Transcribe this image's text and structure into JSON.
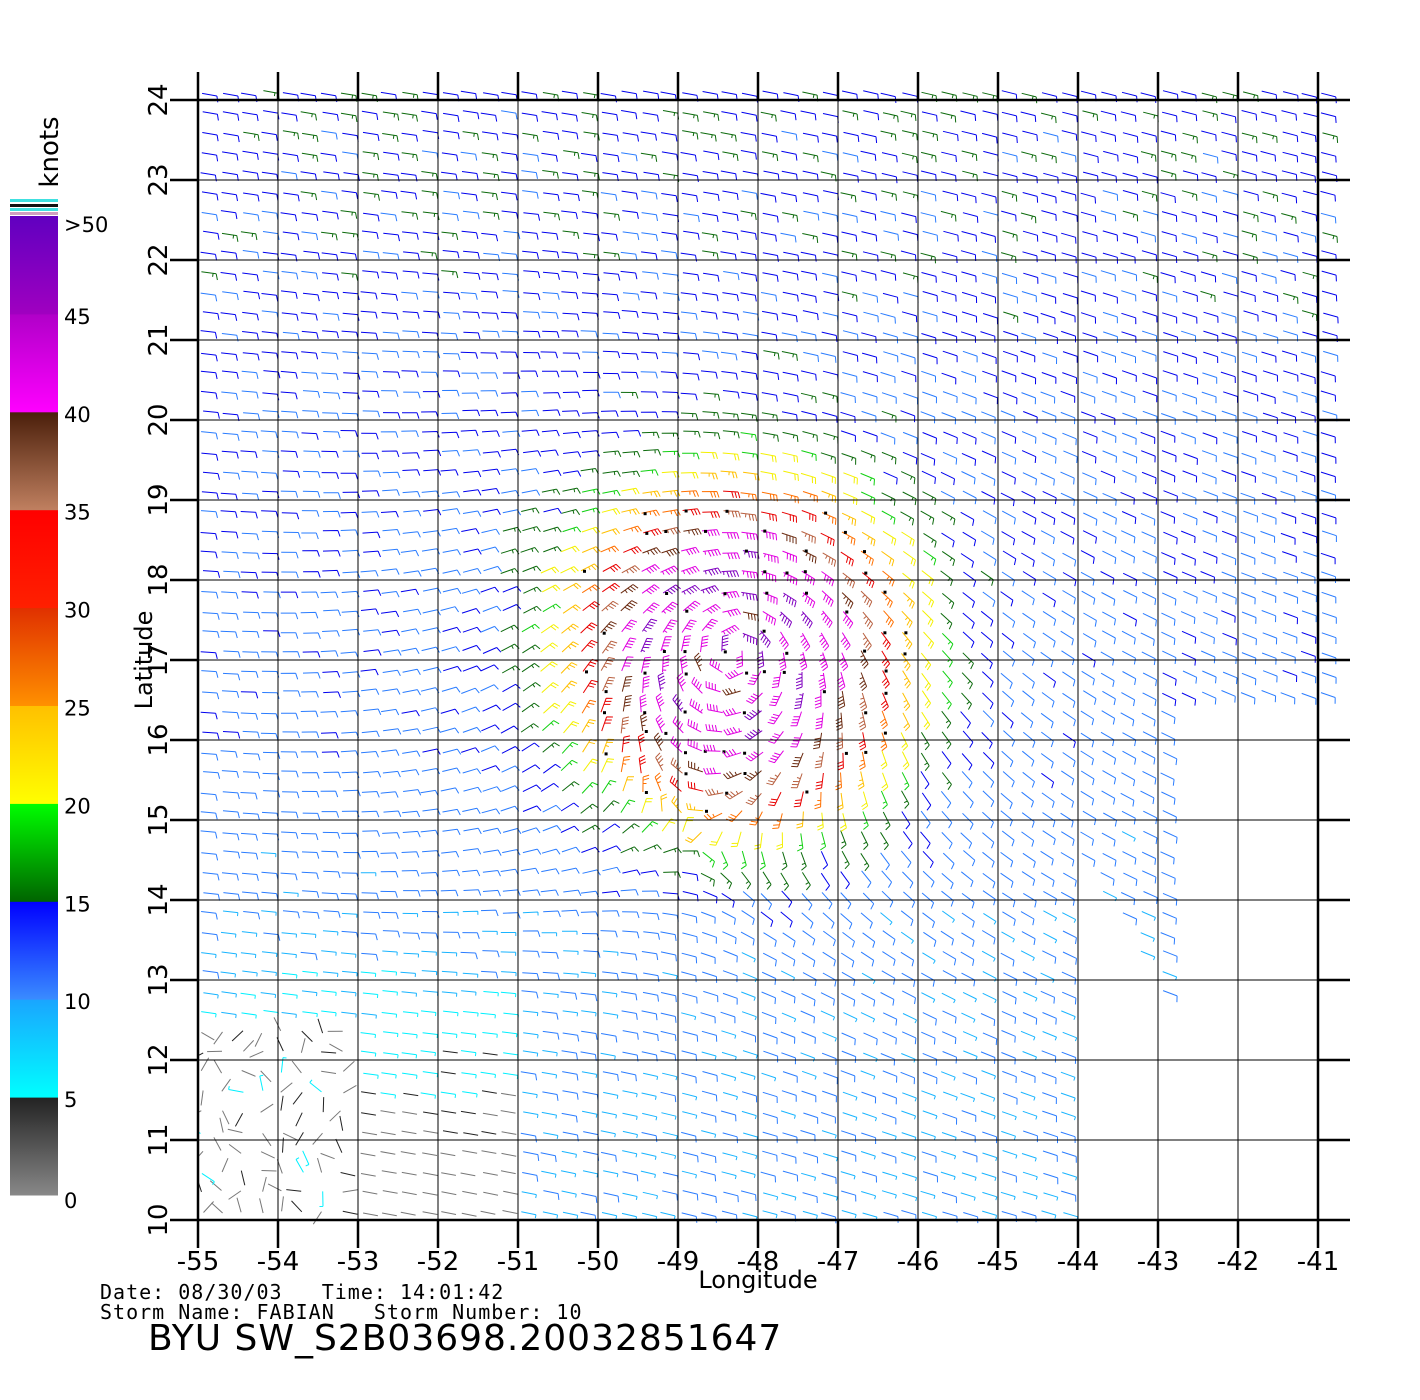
{
  "chart_data": {
    "type": "scatter",
    "plot": "wind-barb field",
    "xlabel": "Longitude",
    "ylabel": "Latitude",
    "xlim": [
      -55,
      -41
    ],
    "ylim": [
      10,
      24
    ],
    "x_ticks": [
      "-55",
      "-54",
      "-53",
      "-52",
      "-51",
      "-50",
      "-49",
      "-48",
      "-47",
      "-46",
      "-45",
      "-44",
      "-43",
      "-42",
      "-41"
    ],
    "y_ticks": [
      "10",
      "11",
      "12",
      "13",
      "14",
      "15",
      "16",
      "17",
      "18",
      "19",
      "20",
      "21",
      "22",
      "23",
      "24"
    ],
    "grid": true,
    "storm_center": {
      "lon": -48.3,
      "lat": 17.1
    },
    "colorbar": {
      "label": "knots",
      "ticks": [
        "0",
        "5",
        "10",
        "15",
        "20",
        "25",
        "30",
        "35",
        "40",
        "45",
        ">50"
      ],
      "bands": [
        {
          "from": 0,
          "to": 5,
          "colors": [
            "#888888",
            "#222222"
          ]
        },
        {
          "from": 5,
          "to": 10,
          "colors": [
            "#00ffff",
            "#1aa5ff"
          ]
        },
        {
          "from": 10,
          "to": 15,
          "colors": [
            "#3a8cff",
            "#0000ff"
          ]
        },
        {
          "from": 15,
          "to": 20,
          "colors": [
            "#006400",
            "#00ff00"
          ]
        },
        {
          "from": 20,
          "to": 25,
          "colors": [
            "#ffff00",
            "#ffc000"
          ]
        },
        {
          "from": 25,
          "to": 30,
          "colors": [
            "#ff9000",
            "#e03000"
          ]
        },
        {
          "from": 30,
          "to": 35,
          "colors": [
            "#ff2000",
            "#ff0000"
          ]
        },
        {
          "from": 35,
          "to": 40,
          "colors": [
            "#c08060",
            "#4a1e0a"
          ]
        },
        {
          "from": 40,
          "to": 45,
          "colors": [
            "#ff00ff",
            "#b000c8"
          ]
        },
        {
          "from": 45,
          "to": 50,
          "colors": [
            "#a000c0",
            "#6000c0"
          ]
        }
      ]
    }
  },
  "footer": {
    "date_line": "Date: 08/30/03   Time: 14:01:42",
    "storm_line": "Storm Name: FABIAN   Storm Number: 10",
    "title": "BYU SW_S2B03698.20032851647"
  }
}
